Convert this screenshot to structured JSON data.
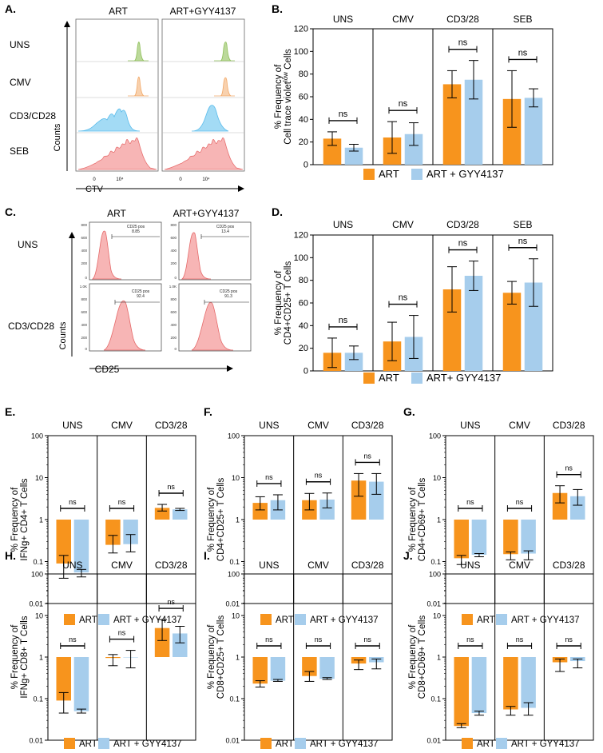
{
  "colors": {
    "art": "#F7941D",
    "gyy": "#A6CDEC",
    "cyto": "#F28C8C",
    "cyto_fill": "#F7B5B5",
    "cyto_top_green": "#9CCB6A",
    "cyto_top_orange": "#F4B47A",
    "cyto_blue": "#6EC6F0",
    "axis": "#000000",
    "ns_text": "#000000"
  },
  "legend": {
    "art": "ART",
    "gyy": "ART + GYY4137",
    "gyy_alt": "ART+ GYY4137"
  },
  "panelA": {
    "letter": "A.",
    "col_labels": [
      "ART",
      "ART+GYY4137"
    ],
    "row_labels": [
      "UNS",
      "CMV",
      "CD3/CD28",
      "SEB"
    ],
    "y_axis": "Counts",
    "x_axis": "CTV",
    "ticks": [
      "0",
      "10⁴",
      "0",
      "10⁴"
    ]
  },
  "panelC": {
    "letter": "C.",
    "col_labels": [
      "ART",
      "ART+GYY4137"
    ],
    "row_labels": [
      "UNS",
      "CD3/CD28"
    ],
    "y_axis": "Counts",
    "x_axis": "CD25",
    "gates": [
      {
        "name": "CD25 pos",
        "value": "8.85"
      },
      {
        "name": "CD25 pos",
        "value": "13.4"
      },
      {
        "name": "CD25 pos",
        "value": "92.4"
      },
      {
        "name": "CD25 pos",
        "value": "91.3"
      }
    ],
    "y_ticks_top": [
      "800",
      "600",
      "400",
      "200",
      "0"
    ],
    "y_ticks_bottom": [
      "1.0K",
      "800",
      "600",
      "400",
      "200",
      "0"
    ]
  },
  "chart_data": [
    {
      "id": "B",
      "letter": "B.",
      "type": "bar",
      "scale": "linear",
      "ylabel_line1": "% Frequency of",
      "ylabel_line2": "Cell trace violet",
      "ylabel_sup": "low",
      "ylabel_tail": " Cells",
      "ylim": [
        0,
        120
      ],
      "yticks": [
        "0",
        "20",
        "40",
        "60",
        "80",
        "100",
        "120"
      ],
      "groups": [
        "UNS",
        "CMV",
        "CD3/28",
        "SEB"
      ],
      "series": [
        {
          "name": "ART",
          "values": [
            23,
            24,
            71,
            58
          ],
          "errors": [
            6,
            14,
            12,
            25
          ]
        },
        {
          "name": "ART + GYY4137",
          "values": [
            15,
            27,
            75,
            59
          ],
          "errors": [
            3,
            10,
            17,
            8
          ]
        }
      ],
      "annotations": [
        "ns",
        "ns",
        "ns",
        "ns"
      ],
      "legend": "ART + GYY4137"
    },
    {
      "id": "D",
      "letter": "D.",
      "type": "bar",
      "scale": "linear",
      "ylabel_line1": "% Frequency of",
      "ylabel_line2": "CD4+CD25+ T Cells",
      "ylim": [
        0,
        120
      ],
      "yticks": [
        "0",
        "20",
        "40",
        "60",
        "80",
        "100",
        "120"
      ],
      "groups": [
        "UNS",
        "CMV",
        "CD3/28",
        "SEB"
      ],
      "series": [
        {
          "name": "ART",
          "values": [
            16,
            26,
            72,
            69
          ],
          "errors": [
            13,
            17,
            20,
            10
          ]
        },
        {
          "name": "ART+ GYY4137",
          "values": [
            16,
            30,
            84,
            78
          ],
          "errors": [
            6,
            19,
            13,
            21
          ]
        }
      ],
      "annotations": [
        "ns",
        "ns",
        "ns",
        "ns"
      ],
      "legend": "ART+ GYY4137"
    },
    {
      "id": "E",
      "letter": "E.",
      "type": "bar",
      "scale": "log",
      "ylabel_line1": "% Frequency of",
      "ylabel_line2": "IFNg+ CD4+ T Cells",
      "ylim": [
        0.01,
        100
      ],
      "yticks": [
        "0.01",
        "0.1",
        "1",
        "10",
        "100"
      ],
      "groups": [
        "UNS",
        "CMV",
        "CD3/28"
      ],
      "series": [
        {
          "name": "ART",
          "values": [
            0.09,
            0.25,
            1.9
          ],
          "err_lo": [
            0.04,
            0.16,
            1.6
          ],
          "err_hi": [
            0.14,
            0.42,
            2.3
          ]
        },
        {
          "name": "ART + GYY4137",
          "values": [
            0.055,
            0.26,
            1.75
          ],
          "err_lo": [
            0.043,
            0.17,
            1.65
          ],
          "err_hi": [
            0.065,
            0.44,
            1.85
          ]
        }
      ],
      "annotations": [
        "ns",
        "ns",
        "ns"
      ],
      "legend": "ART + GYY4137"
    },
    {
      "id": "F",
      "letter": "F.",
      "type": "bar",
      "scale": "log",
      "ylabel_line1": "% Frequency of",
      "ylabel_line2": "CD4+CD25+ T Cells",
      "ylim": [
        0.01,
        100
      ],
      "yticks": [
        "0.01",
        "0.1",
        "1",
        "10",
        "100"
      ],
      "groups": [
        "UNS",
        "CMV",
        "CD3/28"
      ],
      "series": [
        {
          "name": "ART",
          "values": [
            2.5,
            2.9,
            8.5
          ],
          "err_lo": [
            1.7,
            1.7,
            3.6
          ],
          "err_hi": [
            3.5,
            4.2,
            12.5
          ]
        },
        {
          "name": "ART + GYY4137",
          "values": [
            2.9,
            3.0,
            8.0
          ],
          "err_lo": [
            1.7,
            1.9,
            4.0
          ],
          "err_hi": [
            3.9,
            4.3,
            12.5
          ]
        }
      ],
      "annotations": [
        "ns",
        "ns",
        "ns"
      ],
      "legend": "ART + GYY4137"
    },
    {
      "id": "G",
      "letter": "G.",
      "type": "bar",
      "scale": "log",
      "ylabel_line1": "% Frequency of",
      "ylabel_line2": "CD4+CD69+ T Cells",
      "ylim": [
        0.01,
        100
      ],
      "yticks": [
        "0.01",
        "0.1",
        "1",
        "10",
        "100"
      ],
      "groups": [
        "UNS",
        "CMV",
        "CD3/28"
      ],
      "series": [
        {
          "name": "ART",
          "values": [
            0.12,
            0.15,
            4.3
          ],
          "err_lo": [
            0.085,
            0.11,
            2.5
          ],
          "err_hi": [
            0.14,
            0.17,
            6.4
          ]
        },
        {
          "name": "ART + GYY4137",
          "values": [
            0.145,
            0.155,
            3.6
          ],
          "err_lo": [
            0.13,
            0.11,
            2.2
          ],
          "err_hi": [
            0.155,
            0.18,
            5.2
          ]
        }
      ],
      "annotations": [
        "ns",
        "ns",
        "ns"
      ],
      "legend": "ART + GYY4137"
    },
    {
      "id": "H",
      "letter": "H.",
      "type": "bar",
      "scale": "log",
      "ylabel_line1": "% Frequency of",
      "ylabel_line2": "IFNg+ CD8+ T Cells",
      "ylim": [
        0.01,
        100
      ],
      "yticks": [
        "0.01",
        "0.1",
        "1",
        "10",
        "100"
      ],
      "groups": [
        "UNS",
        "CMV",
        "CD3/28"
      ],
      "series": [
        {
          "name": "ART",
          "values": [
            0.09,
            0.95,
            5.0
          ],
          "err_lo": [
            0.045,
            0.62,
            2.5
          ],
          "err_hi": [
            0.14,
            1.15,
            8.0
          ]
        },
        {
          "name": "ART + GYY4137",
          "values": [
            0.05,
            1.0,
            3.7
          ],
          "err_lo": [
            0.045,
            0.55,
            2.2
          ],
          "err_hi": [
            0.056,
            1.45,
            5.5
          ]
        }
      ],
      "annotations": [
        "ns",
        "ns",
        "ns"
      ],
      "legend": "ART + GYY4137"
    },
    {
      "id": "I",
      "letter": "I.",
      "type": "bar",
      "scale": "log",
      "ylabel_line1": "% Frequency of",
      "ylabel_line2": "CD8+CD25+ T Cells",
      "ylim": [
        0.01,
        100
      ],
      "yticks": [
        "0.01",
        "0.1",
        "1",
        "10",
        "100"
      ],
      "groups": [
        "UNS",
        "CMV",
        "CD3/28"
      ],
      "series": [
        {
          "name": "ART",
          "values": [
            0.23,
            0.35,
            0.7
          ],
          "err_lo": [
            0.19,
            0.26,
            0.5
          ],
          "err_hi": [
            0.27,
            0.45,
            0.85
          ]
        },
        {
          "name": "ART + GYY4137",
          "values": [
            0.27,
            0.3,
            0.75
          ],
          "err_lo": [
            0.26,
            0.29,
            0.52
          ],
          "err_hi": [
            0.29,
            0.32,
            0.9
          ]
        }
      ],
      "annotations": [
        "ns",
        "ns",
        "ns"
      ],
      "legend": "ART + GYY4137"
    },
    {
      "id": "J",
      "letter": "J.",
      "type": "bar",
      "scale": "log",
      "ylabel_line1": "% Frequency of",
      "ylabel_line2": "CD8+CD69+ T Cells",
      "ylim": [
        0.01,
        100
      ],
      "yticks": [
        "0.01",
        "0.1",
        "1",
        "10",
        "100"
      ],
      "groups": [
        "UNS",
        "CMV",
        "CD3/28"
      ],
      "series": [
        {
          "name": "ART",
          "values": [
            0.022,
            0.055,
            0.75
          ],
          "err_lo": [
            0.02,
            0.04,
            0.45
          ],
          "err_hi": [
            0.025,
            0.065,
            0.9
          ]
        },
        {
          "name": "ART + GYY4137",
          "values": [
            0.045,
            0.06,
            0.8
          ],
          "err_lo": [
            0.04,
            0.04,
            0.55
          ],
          "err_hi": [
            0.05,
            0.08,
            0.9
          ]
        }
      ],
      "annotations": [
        "ns",
        "ns",
        "ns"
      ],
      "legend": "ART + GYY4137"
    }
  ]
}
